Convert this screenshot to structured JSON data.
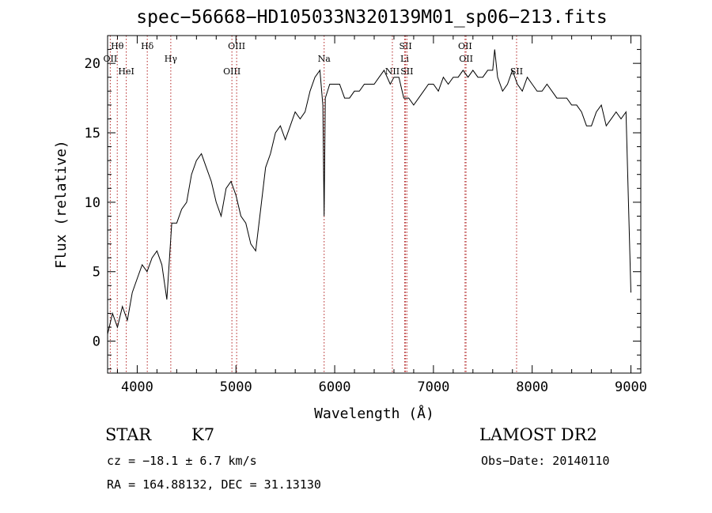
{
  "header": {
    "title": "spec−56668−HD105033N320139M01_sp06−213.fits"
  },
  "info": {
    "object_class": "STAR",
    "subclass": "K7",
    "survey": "LAMOST DR2",
    "cz_text": "cz = −18.1 ± 6.7 km/s",
    "obs_date_text": "Obs−Date: 20140110",
    "coords_text": "RA = 164.88132, DEC =  31.13130"
  },
  "colors": {
    "spectrum": "#000000",
    "line_marker": "#b22222",
    "axes": "#000000"
  },
  "chart_data": {
    "type": "line",
    "title": "spec−56668−HD105033N320139M01_sp06−213.fits",
    "xlabel": "Wavelength (Å)",
    "ylabel": "Flux (relative)",
    "xlim": [
      3700,
      9100
    ],
    "ylim": [
      -2.3,
      22
    ],
    "x_ticks": [
      4000,
      5000,
      6000,
      7000,
      8000,
      9000
    ],
    "y_ticks": [
      0,
      5,
      10,
      15,
      20
    ],
    "grid": false,
    "legend": "none",
    "series": [
      {
        "x": [
          3700,
          3750,
          3800,
          3850,
          3900,
          3950,
          4000,
          4050,
          4100,
          4150,
          4200,
          4250,
          4300,
          4350,
          4400,
          4450,
          4500,
          4550,
          4600,
          4650,
          4700,
          4750,
          4800,
          4850,
          4900,
          4950,
          5000,
          5050,
          5100,
          5150,
          5200,
          5250,
          5300,
          5350,
          5400,
          5450,
          5500,
          5550,
          5600,
          5650,
          5700,
          5750,
          5800,
          5850,
          5880,
          5893,
          5905,
          5950,
          6000,
          6050,
          6100,
          6150,
          6200,
          6250,
          6300,
          6350,
          6400,
          6450,
          6500,
          6563,
          6600,
          6650,
          6700,
          6750,
          6800,
          6850,
          6900,
          6950,
          7000,
          7050,
          7100,
          7150,
          7200,
          7250,
          7300,
          7350,
          7400,
          7450,
          7500,
          7550,
          7600,
          7620,
          7650,
          7700,
          7750,
          7800,
          7850,
          7900,
          7950,
          8000,
          8050,
          8100,
          8150,
          8200,
          8250,
          8300,
          8350,
          8400,
          8450,
          8500,
          8550,
          8600,
          8650,
          8700,
          8750,
          8800,
          8850,
          8900,
          8950,
          9000
        ],
        "values": [
          0.5,
          2.0,
          1.0,
          2.5,
          1.5,
          3.5,
          4.5,
          5.5,
          5.0,
          6.0,
          6.5,
          5.5,
          3.0,
          8.5,
          8.5,
          9.5,
          10.0,
          12.0,
          13.0,
          13.5,
          12.5,
          11.5,
          10.0,
          9.0,
          11.0,
          11.5,
          10.5,
          9.0,
          8.5,
          7.0,
          6.5,
          9.5,
          12.5,
          13.5,
          15.0,
          15.5,
          14.5,
          15.5,
          16.5,
          16.0,
          16.5,
          18.0,
          19.0,
          19.5,
          17.0,
          9.0,
          17.5,
          18.5,
          18.5,
          18.5,
          17.5,
          17.5,
          18.0,
          18.0,
          18.5,
          18.5,
          18.5,
          19.0,
          19.5,
          18.5,
          19.0,
          19.0,
          17.5,
          17.5,
          17.0,
          17.5,
          18.0,
          18.5,
          18.5,
          18.0,
          19.0,
          18.5,
          19.0,
          19.0,
          19.5,
          19.0,
          19.5,
          19.0,
          19.0,
          19.5,
          19.5,
          21.0,
          19.0,
          18.0,
          18.5,
          19.5,
          18.5,
          18.0,
          19.0,
          18.5,
          18.0,
          18.0,
          18.5,
          18.0,
          17.5,
          17.5,
          17.5,
          17.0,
          17.0,
          16.5,
          15.5,
          15.5,
          16.5,
          17.0,
          15.5,
          16.0,
          16.5,
          16.0,
          16.5,
          3.5
        ]
      }
    ],
    "line_markers": [
      {
        "label": "Hθ",
        "x": 3798
      },
      {
        "label": "OII",
        "x": 3727
      },
      {
        "label": "HeI",
        "x": 3889
      },
      {
        "label": "Hδ",
        "x": 4102
      },
      {
        "label": "Hγ",
        "x": 4340
      },
      {
        "label": "OIII",
        "x": 4959
      },
      {
        "label": "OIII",
        "x": 5007
      },
      {
        "label": "Na",
        "x": 5893
      },
      {
        "label": "NII",
        "x": 6584
      },
      {
        "label": "SII",
        "x": 6717
      },
      {
        "label": "Li",
        "x": 6708
      },
      {
        "label": "SII",
        "x": 6731
      },
      {
        "label": "OII",
        "x": 7320
      },
      {
        "label": "OII",
        "x": 7330
      },
      {
        "label": "SII",
        "x": 7842
      }
    ]
  }
}
